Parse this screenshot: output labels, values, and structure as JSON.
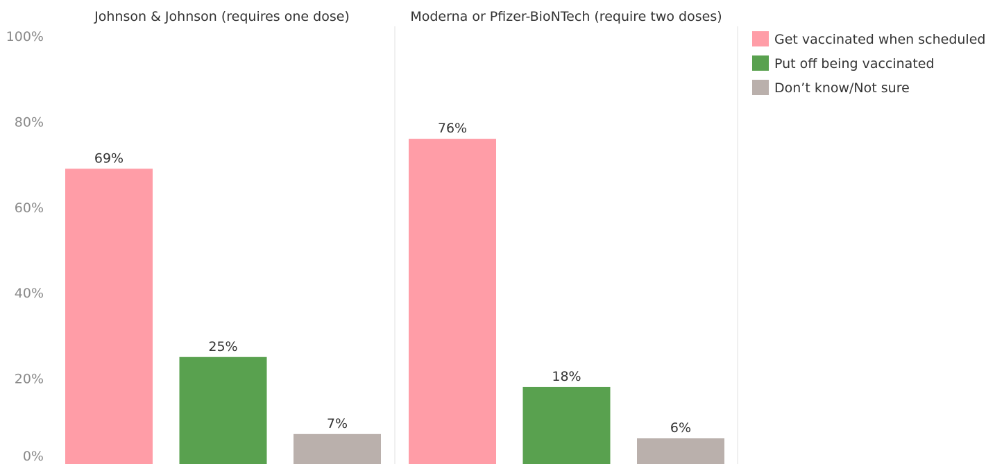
{
  "chart_data": {
    "type": "bar",
    "title": "",
    "xlabel": "",
    "ylabel": "",
    "ylim": [
      0,
      100
    ],
    "y_ticks": [
      "0%",
      "20%",
      "40%",
      "60%",
      "80%",
      "100%"
    ],
    "grid": false,
    "legend_position": "top-right",
    "panels": [
      {
        "title": "Johnson & Johnson (requires one dose)",
        "values": [
          69,
          25,
          7
        ],
        "labels": [
          "69%",
          "25%",
          "7%"
        ]
      },
      {
        "title": "Moderna or Pfizer-BioNTech (require two doses)",
        "values": [
          76,
          18,
          6
        ],
        "labels": [
          "76%",
          "18%",
          "6%"
        ]
      }
    ],
    "series": [
      {
        "name": "Get vaccinated when scheduled",
        "color": "#ff9da7"
      },
      {
        "name": "Put off being vaccinated",
        "color": "#59a14f"
      },
      {
        "name": "Don’t know/Not sure",
        "color": "#bab0ac"
      }
    ]
  }
}
